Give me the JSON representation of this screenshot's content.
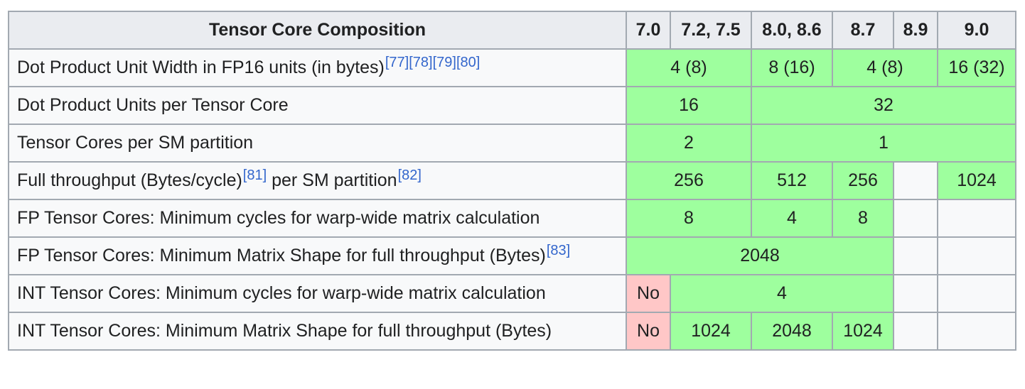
{
  "header": {
    "title": "Tensor Core Composition",
    "cc": [
      "7.0",
      "7.2, 7.5",
      "8.0, 8.6",
      "8.7",
      "8.9",
      "9.0"
    ]
  },
  "rows": {
    "dot_width": {
      "label": "Dot Product Unit Width in FP16 units (in bytes)",
      "refs": [
        "[77]",
        "[78]",
        "[79]",
        "[80]"
      ],
      "v1": "4 (8)",
      "v2": "8 (16)",
      "v3": "4 (8)",
      "v4": "16 (32)"
    },
    "dot_units": {
      "label": "Dot Product Units per Tensor Core",
      "v1": "16",
      "v2": "32"
    },
    "cores_per_sm": {
      "label": "Tensor Cores per SM partition",
      "v1": "2",
      "v2": "1"
    },
    "throughput": {
      "label_a": "Full throughput (Bytes/cycle)",
      "ref_a": "[81]",
      "label_b": " per SM partition",
      "ref_b": "[82]",
      "v1": "256",
      "v2": "512",
      "v3": "256",
      "v4": "1024"
    },
    "fp_cycles": {
      "label": "FP Tensor Cores: Minimum cycles for warp-wide matrix calculation",
      "v1": "8",
      "v2": "4",
      "v3": "8"
    },
    "fp_shape": {
      "label": "FP Tensor Cores: Minimum Matrix Shape for full throughput (Bytes)",
      "ref": "[83]",
      "v1": "2048"
    },
    "int_cycles": {
      "label": "INT Tensor Cores: Minimum cycles for warp-wide matrix calculation",
      "v1": "No",
      "v2": "4"
    },
    "int_shape": {
      "label": "INT Tensor Cores: Minimum Matrix Shape for full throughput (Bytes)",
      "v1": "No",
      "v2": "1024",
      "v3": "2048",
      "v4": "1024"
    }
  },
  "colors": {
    "supported": "#9eff9e",
    "unsupported": "#ffc7c7",
    "header_bg": "#eaecf0",
    "border": "#a2a9b1",
    "link": "#3366cc"
  }
}
